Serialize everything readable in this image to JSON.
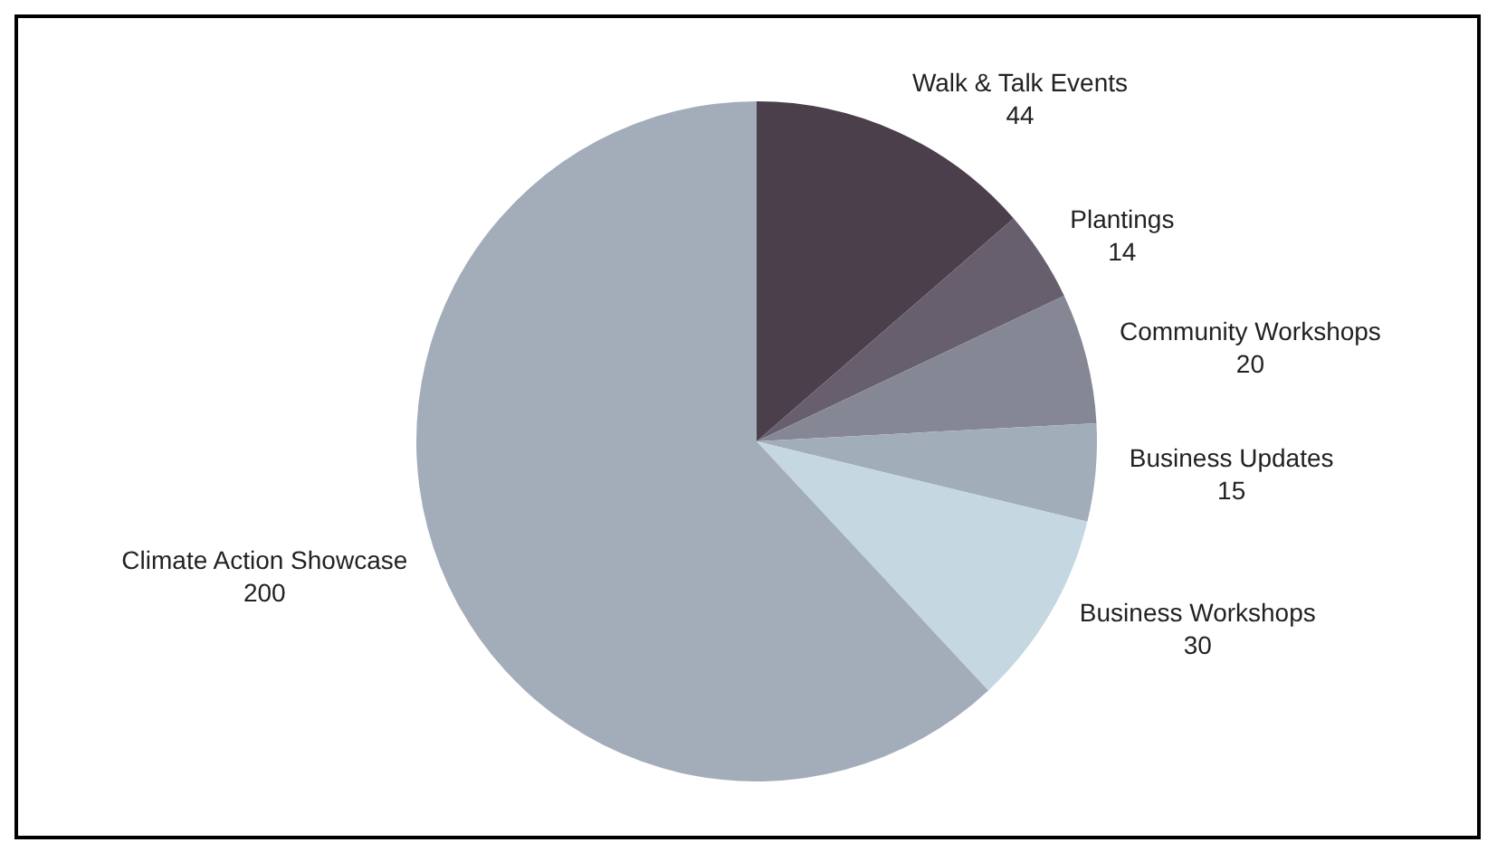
{
  "chart_data": {
    "type": "pie",
    "categories": [
      "Walk & Talk Events",
      "Plantings",
      "Community Workshops",
      "Business Updates",
      "Business Workshops",
      "Climate Action Showcase"
    ],
    "values": [
      44,
      14,
      20,
      15,
      30,
      200
    ],
    "colors": [
      "#4a3f4b",
      "#675f6d",
      "#868795",
      "#a2adba",
      "#c5d7e0",
      "#a3adba"
    ],
    "data_labels": true,
    "legend": false
  }
}
